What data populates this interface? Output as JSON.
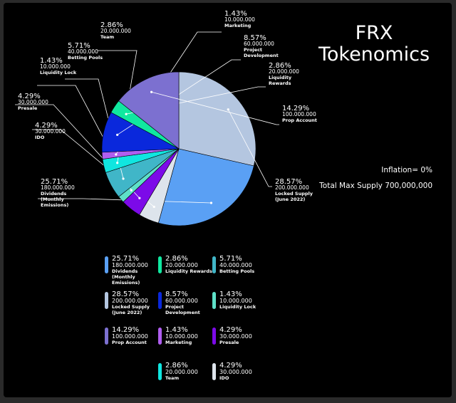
{
  "title_line1": "FRX",
  "title_line2": "Tokenomics",
  "inflation": "Inflation= 0%",
  "total_supply": "Total Max Supply 700,000,000",
  "chart_data": {
    "type": "pie",
    "slices": [
      {
        "pct": "28.57%",
        "value": 28.57,
        "amount": "200.000.000",
        "name": "Locked Supply (June 2022)",
        "color": "#b4c6e0"
      },
      {
        "pct": "25.71%",
        "value": 25.71,
        "amount": "180.000.000",
        "name": "Dividends (Monthly Emissions)",
        "color": "#5aa0f4"
      },
      {
        "pct": "4.29%",
        "value": 4.29,
        "amount": "30.000.000",
        "name": "IDO",
        "color": "#dde4ec"
      },
      {
        "pct": "4.29%",
        "value": 4.29,
        "amount": "30.000.000",
        "name": "Presale",
        "color": "#7c0ae8"
      },
      {
        "pct": "1.43%",
        "value": 1.43,
        "amount": "10.000.000",
        "name": "Liquidity Lock",
        "color": "#5ee0c8"
      },
      {
        "pct": "5.71%",
        "value": 5.71,
        "amount": "40.000.000",
        "name": "Betting Pools",
        "color": "#40b6c8"
      },
      {
        "pct": "2.86%",
        "value": 2.86,
        "amount": "20.000.000",
        "name": "Team",
        "color": "#10e6e0"
      },
      {
        "pct": "1.43%",
        "value": 1.43,
        "amount": "10.000.000",
        "name": "Marketing",
        "color": "#b05ef0"
      },
      {
        "pct": "8.57%",
        "value": 8.57,
        "amount": "60.000.000",
        "name": "Project Development",
        "color": "#0a28dc"
      },
      {
        "pct": "2.86%",
        "value": 2.86,
        "amount": "20.000.000",
        "name": "Liquidity Rewards",
        "color": "#10e8a0"
      },
      {
        "pct": "14.29%",
        "value": 14.29,
        "amount": "100.000.000",
        "name": "Prop Account",
        "color": "#7c70d0"
      }
    ],
    "legend": [
      {
        "pct": "25.71%",
        "amount": "180.000.000",
        "name": "Dividends (Monthly Emissions)",
        "color": "#5aa0f4"
      },
      {
        "pct": "2.86%",
        "amount": "20.000.000",
        "name": "Liquidity Rewards",
        "color": "#10e8a0"
      },
      {
        "pct": "5.71%",
        "amount": "40.000.000",
        "name": "Betting Pools",
        "color": "#40b6c8"
      },
      {
        "pct": "28.57%",
        "amount": "200.000.000",
        "name": "Locked Supply (June 2022)",
        "color": "#b4c6e0"
      },
      {
        "pct": "8.57%",
        "amount": "60.000.000",
        "name": "Project Development",
        "color": "#0a28dc"
      },
      {
        "pct": "1.43%",
        "amount": "10.000.000",
        "name": "Liquidity Lock",
        "color": "#5ee0c8"
      },
      {
        "pct": "14.29%",
        "amount": "100.000.000",
        "name": "Prop Account",
        "color": "#7c70d0"
      },
      {
        "pct": "1.43%",
        "amount": "10.000.000",
        "name": "Marketing",
        "color": "#b05ef0"
      },
      {
        "pct": "4.29%",
        "amount": "30.000.000",
        "name": "Presale",
        "color": "#7c0ae8"
      },
      {
        "pct": "2.86%",
        "amount": "20.000.000",
        "name": "Team",
        "color": "#10e6e0"
      },
      {
        "pct": "4.29%",
        "amount": "30.000.000",
        "name": "IDO",
        "color": "#dde4ec"
      }
    ]
  }
}
